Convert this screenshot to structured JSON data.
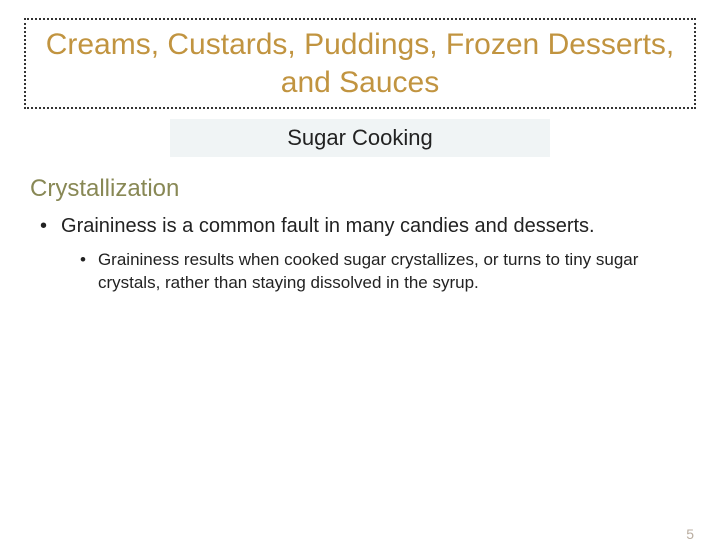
{
  "title": "Creams, Custards, Puddings, Frozen Desserts, and Sauces",
  "subtitle": "Sugar Cooking",
  "section_heading": "Crystallization",
  "bullets": {
    "level1": "Graininess is a common fault in many candies and desserts.",
    "level2": "Graininess results when cooked sugar crystallizes, or turns to tiny sugar crystals, rather than staying dissolved in the syrup."
  },
  "page_number": "5",
  "colors": {
    "title_color": "#c19440",
    "subtitle_bg": "#f0f4f5",
    "heading_color": "#888855",
    "text_color": "#222222",
    "page_num_color": "#b9ada0",
    "border_color": "#333333",
    "background": "#ffffff"
  },
  "fonts": {
    "title_size_pt": 30,
    "subtitle_size_pt": 22,
    "heading_size_pt": 24,
    "bullet1_size_pt": 20,
    "bullet2_size_pt": 17,
    "page_num_size_pt": 14
  }
}
